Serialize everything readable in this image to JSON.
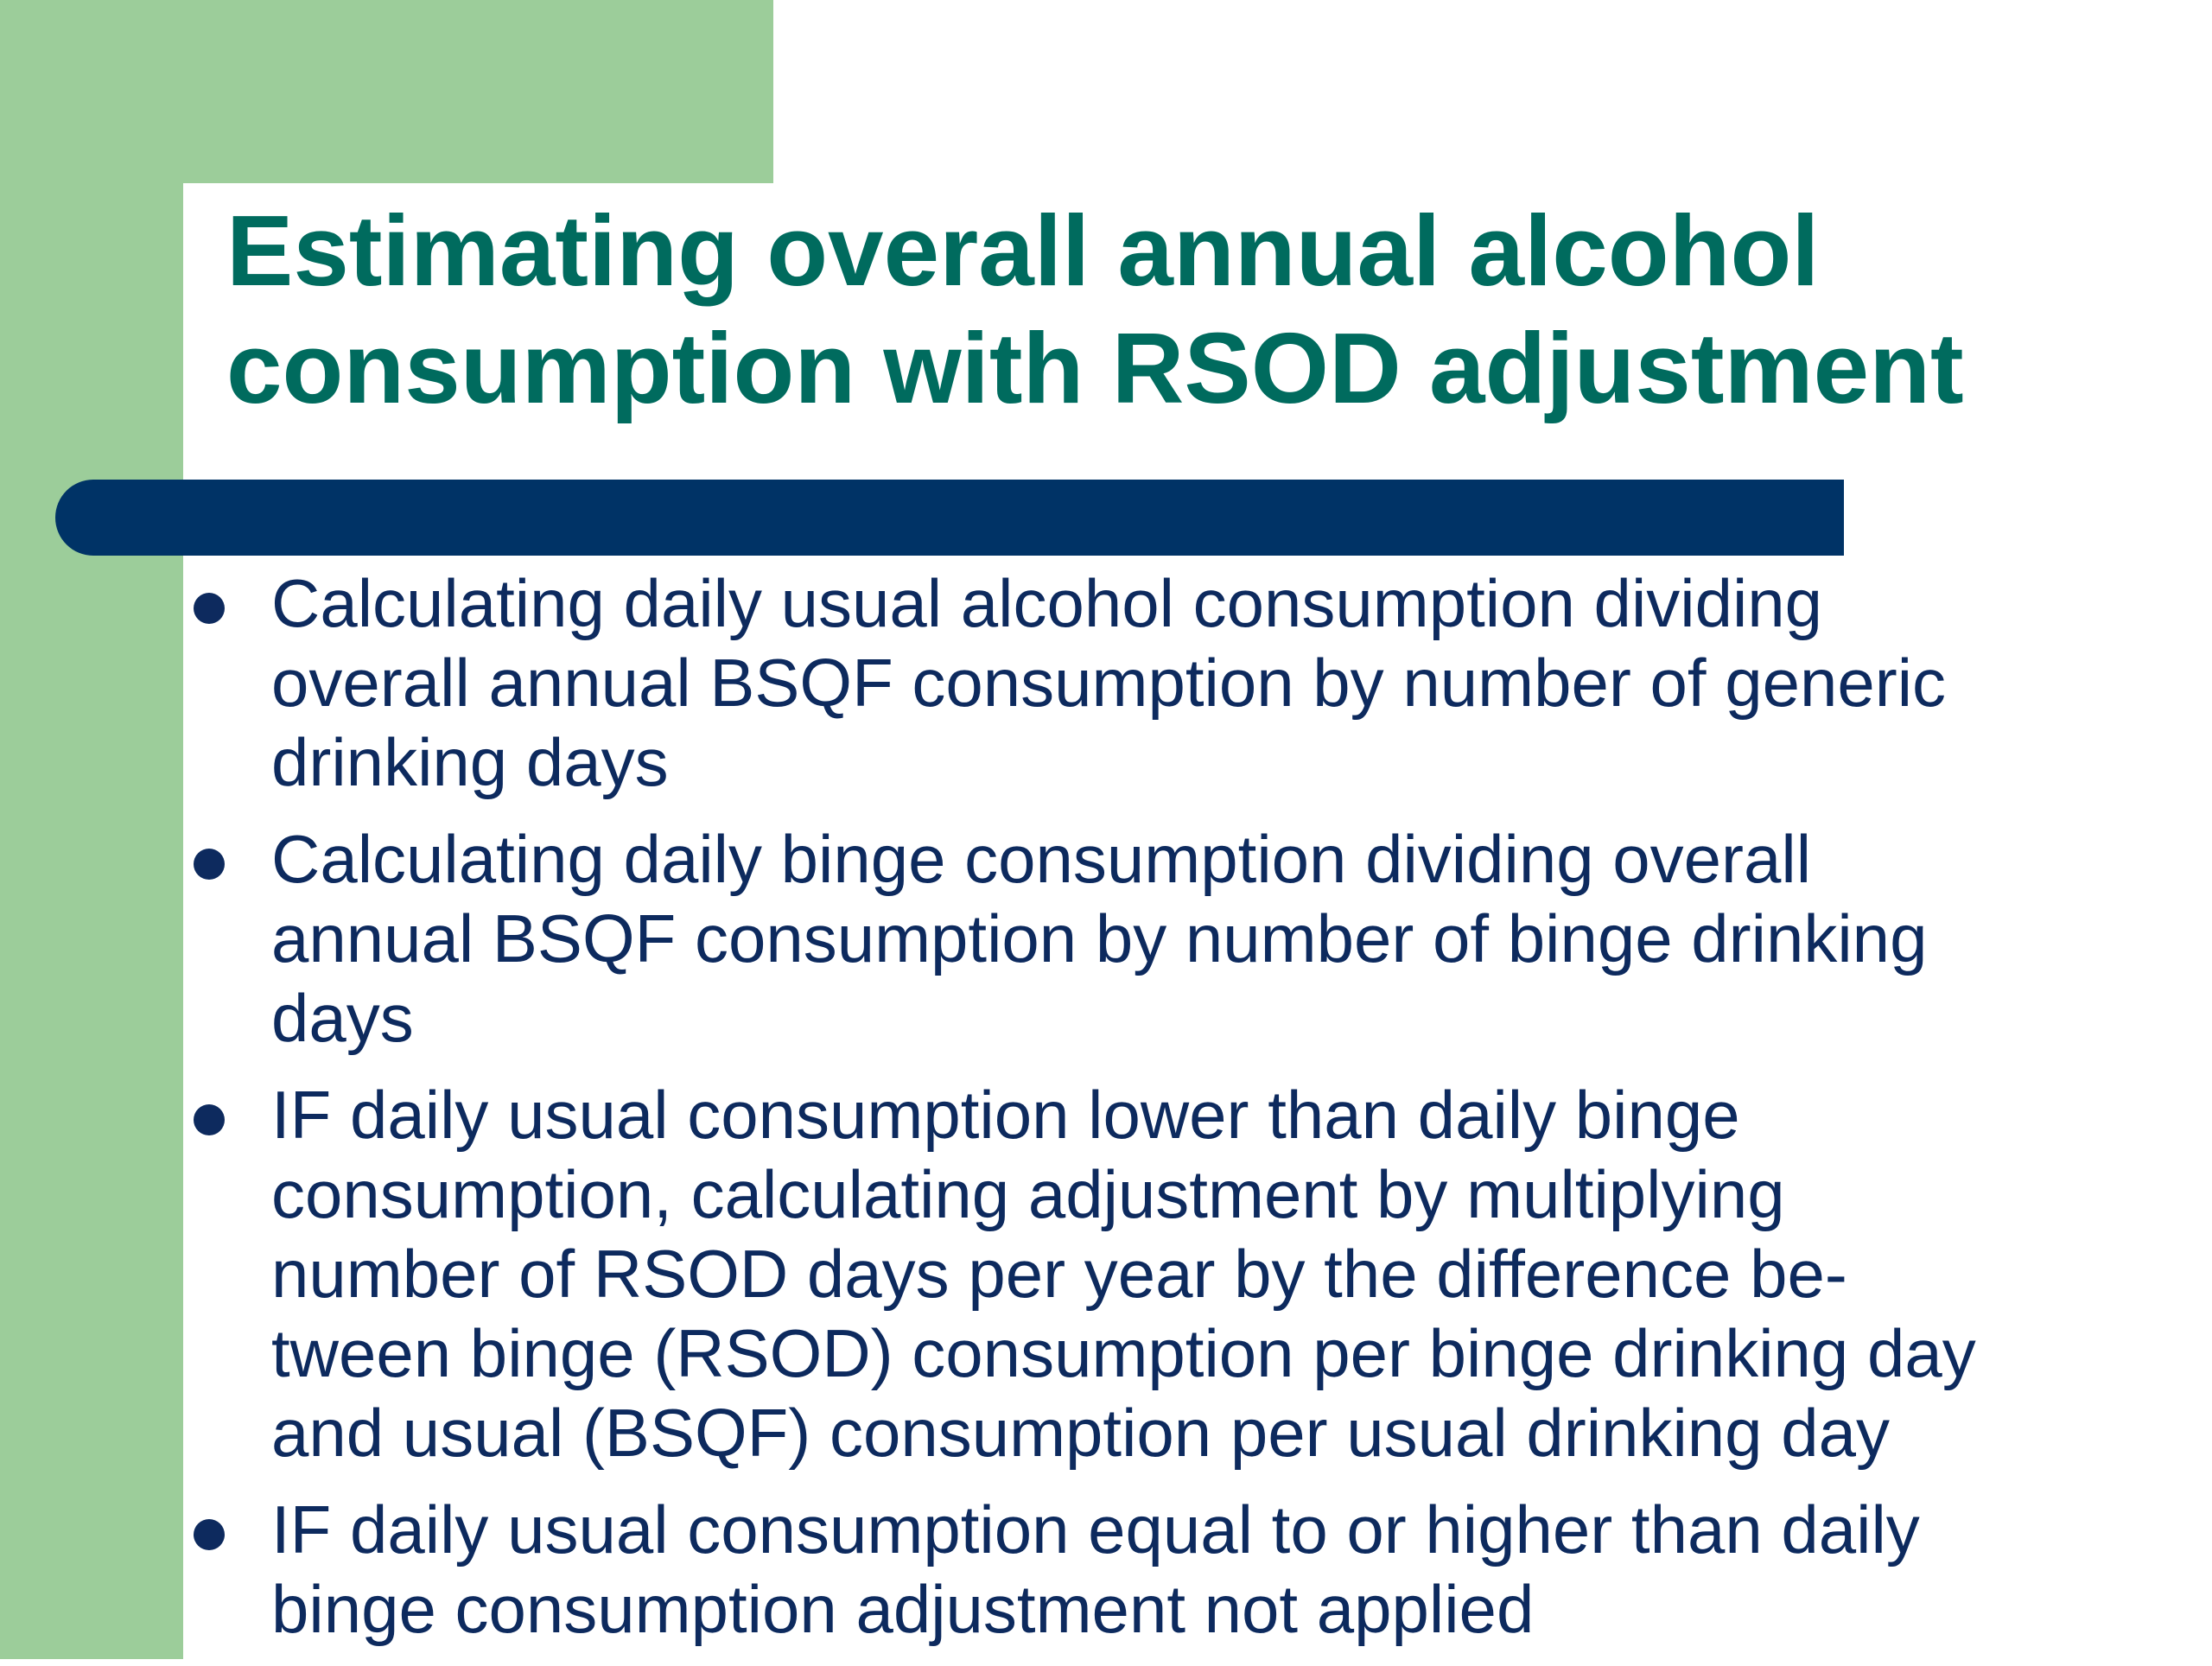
{
  "slide": {
    "title_line1": "Estimating overall annual alcohol",
    "title_line2": "consumption with RSOD adjustment",
    "colors": {
      "title": "#006b5e",
      "body_text": "#0d2a5e",
      "accent_bar": "#003366",
      "green_background": "#9ccd9a"
    },
    "bullets": [
      {
        "lines": [
          "Calculating daily usual alcohol consumption dividing",
          "overall annual BSQF consumption by number of generic",
          "drinking days"
        ]
      },
      {
        "lines": [
          "Calculating daily binge consumption dividing overall",
          "annual BSQF consumption by number of binge drinking",
          "days"
        ]
      },
      {
        "lines": [
          "IF daily usual consumption lower than daily binge",
          "consumption, calculating adjustment by multiplying",
          "number of RSOD days per year by the difference be-",
          "tween binge (RSOD) consumption per binge drinking day",
          "and usual (BSQF) consumption per usual drinking day"
        ]
      },
      {
        "lines": [
          "IF daily usual consumption equal to or higher than daily",
          "binge consumption adjustment not applied"
        ]
      }
    ]
  }
}
